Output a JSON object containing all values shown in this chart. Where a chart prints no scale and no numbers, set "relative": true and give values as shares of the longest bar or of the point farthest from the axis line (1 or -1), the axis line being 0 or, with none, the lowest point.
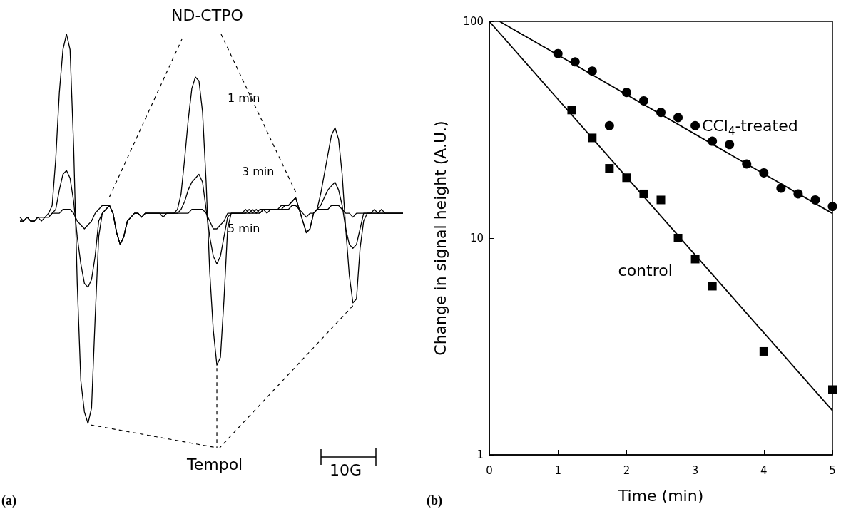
{
  "chart_data": [
    {
      "type": "line",
      "relative": true,
      "grid": false,
      "legend": false,
      "line_style": "solid",
      "annotations": [
        "ND-CTPO",
        "Tempol",
        "10G",
        "(a)"
      ],
      "categories": [
        null,
        null,
        null,
        null,
        null,
        null,
        null,
        null,
        null,
        null,
        null,
        null,
        null,
        null,
        null,
        null,
        null,
        null,
        null,
        null,
        null,
        null,
        null,
        null,
        null,
        null,
        null,
        null,
        null,
        null,
        null,
        null,
        null,
        null,
        null,
        null,
        null,
        null,
        null,
        null,
        null,
        null,
        null,
        null,
        null,
        null,
        null,
        null,
        null,
        null,
        null,
        null,
        null,
        null,
        null,
        null,
        null,
        null,
        null,
        null,
        null,
        null,
        null,
        null,
        null,
        null,
        null,
        null,
        null,
        null,
        null,
        null,
        null,
        null,
        null,
        null,
        null,
        null,
        null,
        null,
        null,
        null,
        null,
        null,
        null,
        null,
        null,
        null,
        null,
        null,
        null,
        null,
        null,
        null,
        null,
        null,
        null,
        null,
        null,
        null,
        null,
        null,
        null,
        null,
        null,
        null,
        null,
        null
      ],
      "series": [
        {
          "name": "1 min",
          "color": "#000000",
          "values": [
            0.52,
            0.52,
            0.53,
            0.52,
            0.52,
            0.53,
            0.53,
            0.53,
            0.54,
            0.56,
            0.68,
            0.85,
            0.96,
            1,
            0.96,
            0.71,
            0.36,
            0.11,
            0.03,
            0,
            0.04,
            0.27,
            0.48,
            0.54,
            0.55,
            0.56,
            0.54,
            0.49,
            0.46,
            0.48,
            0.52,
            0.53,
            0.54,
            0.54,
            0.53,
            0.54,
            0.54,
            0.54,
            0.54,
            0.54,
            0.54,
            0.54,
            0.54,
            0.54,
            0.55,
            0.59,
            0.68,
            0.78,
            0.86,
            0.89,
            0.88,
            0.8,
            0.62,
            0.39,
            0.24,
            0.15,
            0.17,
            0.32,
            0.5,
            0.54,
            0.54,
            0.54,
            0.54,
            0.54,
            0.55,
            0.54,
            0.55,
            0.54,
            0.55,
            0.55,
            0.55,
            0.55,
            0.55,
            0.56,
            0.56,
            0.56,
            0.57,
            0.58,
            0.55,
            0.52,
            0.49,
            0.5,
            0.54,
            0.55,
            0.59,
            0.64,
            0.69,
            0.74,
            0.76,
            0.73,
            0.64,
            0.5,
            0.38,
            0.31,
            0.32,
            0.45,
            0.52,
            0.54,
            0.54,
            0.54,
            0.54,
            0.55,
            0.54,
            0.54,
            0.54,
            0.54,
            0.54,
            0.54
          ]
        },
        {
          "name": "3 min",
          "color": "#000000",
          "values": [
            0.53,
            0.52,
            0.53,
            0.52,
            0.52,
            0.53,
            0.53,
            0.53,
            0.53,
            0.54,
            0.55,
            0.6,
            0.64,
            0.65,
            0.63,
            0.57,
            0.48,
            0.41,
            0.36,
            0.35,
            0.37,
            0.43,
            0.52,
            0.54,
            0.55,
            0.56,
            0.54,
            0.49,
            0.46,
            0.48,
            0.52,
            0.53,
            0.54,
            0.54,
            0.53,
            0.54,
            0.54,
            0.54,
            0.54,
            0.54,
            0.53,
            0.54,
            0.54,
            0.54,
            0.54,
            0.55,
            0.57,
            0.6,
            0.62,
            0.63,
            0.64,
            0.62,
            0.55,
            0.48,
            0.43,
            0.41,
            0.43,
            0.48,
            0.53,
            0.54,
            0.54,
            0.54,
            0.54,
            0.55,
            0.54,
            0.55,
            0.54,
            0.55,
            0.55,
            0.55,
            0.55,
            0.55,
            0.55,
            0.55,
            0.56,
            0.56,
            0.57,
            0.58,
            0.55,
            0.52,
            0.49,
            0.5,
            0.54,
            0.55,
            0.56,
            0.58,
            0.6,
            0.61,
            0.62,
            0.6,
            0.56,
            0.5,
            0.46,
            0.45,
            0.46,
            0.5,
            0.54,
            0.54,
            0.54,
            0.55,
            0.54,
            0.54,
            0.54,
            0.54,
            0.54,
            0.54,
            0.54,
            0.54
          ]
        },
        {
          "name": "5 min",
          "color": "#000000",
          "values": [
            0.52,
            0.52,
            0.53,
            0.52,
            0.52,
            0.53,
            0.52,
            0.53,
            0.53,
            0.54,
            0.54,
            0.54,
            0.55,
            0.55,
            0.55,
            0.54,
            0.52,
            0.51,
            0.5,
            0.51,
            0.52,
            0.54,
            0.55,
            0.56,
            0.56,
            0.56,
            0.54,
            0.49,
            0.46,
            0.48,
            0.52,
            0.53,
            0.54,
            0.54,
            0.53,
            0.54,
            0.54,
            0.54,
            0.54,
            0.54,
            0.54,
            0.54,
            0.54,
            0.54,
            0.54,
            0.54,
            0.54,
            0.54,
            0.55,
            0.55,
            0.55,
            0.55,
            0.54,
            0.52,
            0.5,
            0.5,
            0.51,
            0.52,
            0.54,
            0.54,
            0.54,
            0.54,
            0.54,
            0.54,
            0.54,
            0.54,
            0.54,
            0.54,
            0.55,
            0.54,
            0.55,
            0.55,
            0.55,
            0.55,
            0.55,
            0.55,
            0.56,
            0.56,
            0.55,
            0.54,
            0.53,
            0.54,
            0.54,
            0.55,
            0.55,
            0.55,
            0.55,
            0.56,
            0.56,
            0.56,
            0.55,
            0.54,
            0.54,
            0.53,
            0.54,
            0.54,
            0.54,
            0.54,
            0.54,
            0.54,
            0.54,
            0.54,
            0.54,
            0.54,
            0.54,
            0.54,
            0.54,
            0.54
          ]
        }
      ]
    },
    {
      "type": "scatter",
      "xlabel": "Time (min)",
      "ylabel": "Change in signal height (A.U.)",
      "log": "y",
      "grid": false,
      "legend": false,
      "xlim": [
        0,
        5
      ],
      "xticks": [
        0,
        1,
        2,
        3,
        4,
        5
      ],
      "ylim": [
        1,
        100
      ],
      "yticks": [
        1,
        10,
        100
      ],
      "annotations": [
        "(b)"
      ],
      "series": [
        {
          "name": "CCl$_{4}$-treated",
          "type": "scatter",
          "marker": "circle",
          "color": "#000000",
          "x": [
            1,
            1.25,
            1.5,
            1.75,
            2,
            2.25,
            2.5,
            2.75,
            3,
            3.25,
            3.5,
            3.75,
            4,
            4.25,
            4.5,
            4.75,
            5
          ],
          "values": [
            71,
            65,
            59,
            33,
            47,
            43,
            38,
            36,
            33,
            28,
            27,
            22,
            20,
            17,
            16,
            15,
            14
          ]
        },
        {
          "name": "control",
          "type": "scatter",
          "marker": "square",
          "color": "#000000",
          "x": [
            1.2,
            1.5,
            1.75,
            2,
            2.25,
            2.5,
            2.75,
            3,
            3.25,
            4,
            5
          ],
          "values": [
            39,
            29,
            21,
            19,
            16,
            15,
            10,
            8,
            6,
            3,
            2
          ]
        },
        {
          "type": "line",
          "marker": "none",
          "color": "#000000",
          "x": [
            0.15,
            5
          ],
          "values": [
            100,
            13
          ]
        },
        {
          "type": "line",
          "marker": "none",
          "color": "#000000",
          "x": [
            0,
            5
          ],
          "values": [
            100,
            1.6
          ]
        }
      ]
    }
  ]
}
